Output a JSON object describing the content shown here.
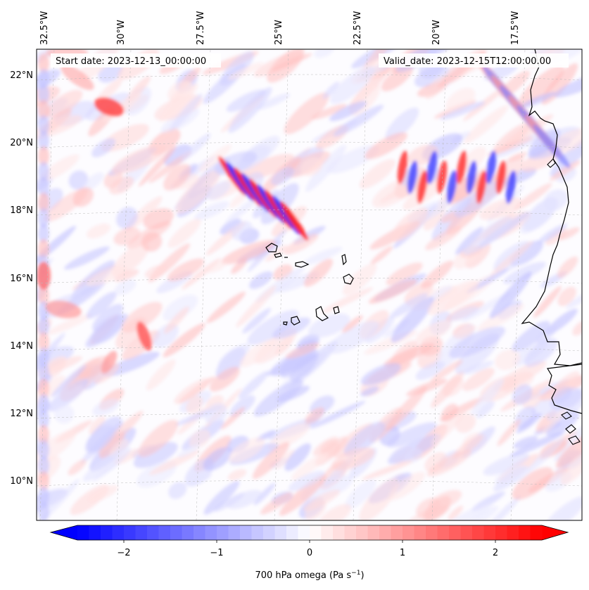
{
  "map": {
    "start_label": "Start date: 2023-12-13_00:00:00",
    "valid_label": "Valid_date: 2023-12-15T12:00:00.00",
    "lon_labels": [
      "32.5°W",
      "30°W",
      "27.5°W",
      "25°W",
      "22.5°W",
      "20°W",
      "17.5°W"
    ],
    "lat_labels": [
      "22°N",
      "20°N",
      "18°N",
      "16°N",
      "14°N",
      "12°N",
      "10°N"
    ]
  },
  "colorbar": {
    "tick_labels": [
      "−2",
      "−1",
      "0",
      "1",
      "2"
    ],
    "tick_values": [
      -2,
      -1,
      0,
      1,
      2
    ],
    "range": [
      -2.5,
      2.5
    ],
    "label_prefix": "700 hPa omega (Pa s",
    "label_exp": "−1",
    "label_suffix": ")",
    "colormap": "bwr",
    "extend": "both",
    "negative_color": "#0000ff",
    "zero_color": "#ffffff",
    "positive_color": "#ff0000"
  }
}
